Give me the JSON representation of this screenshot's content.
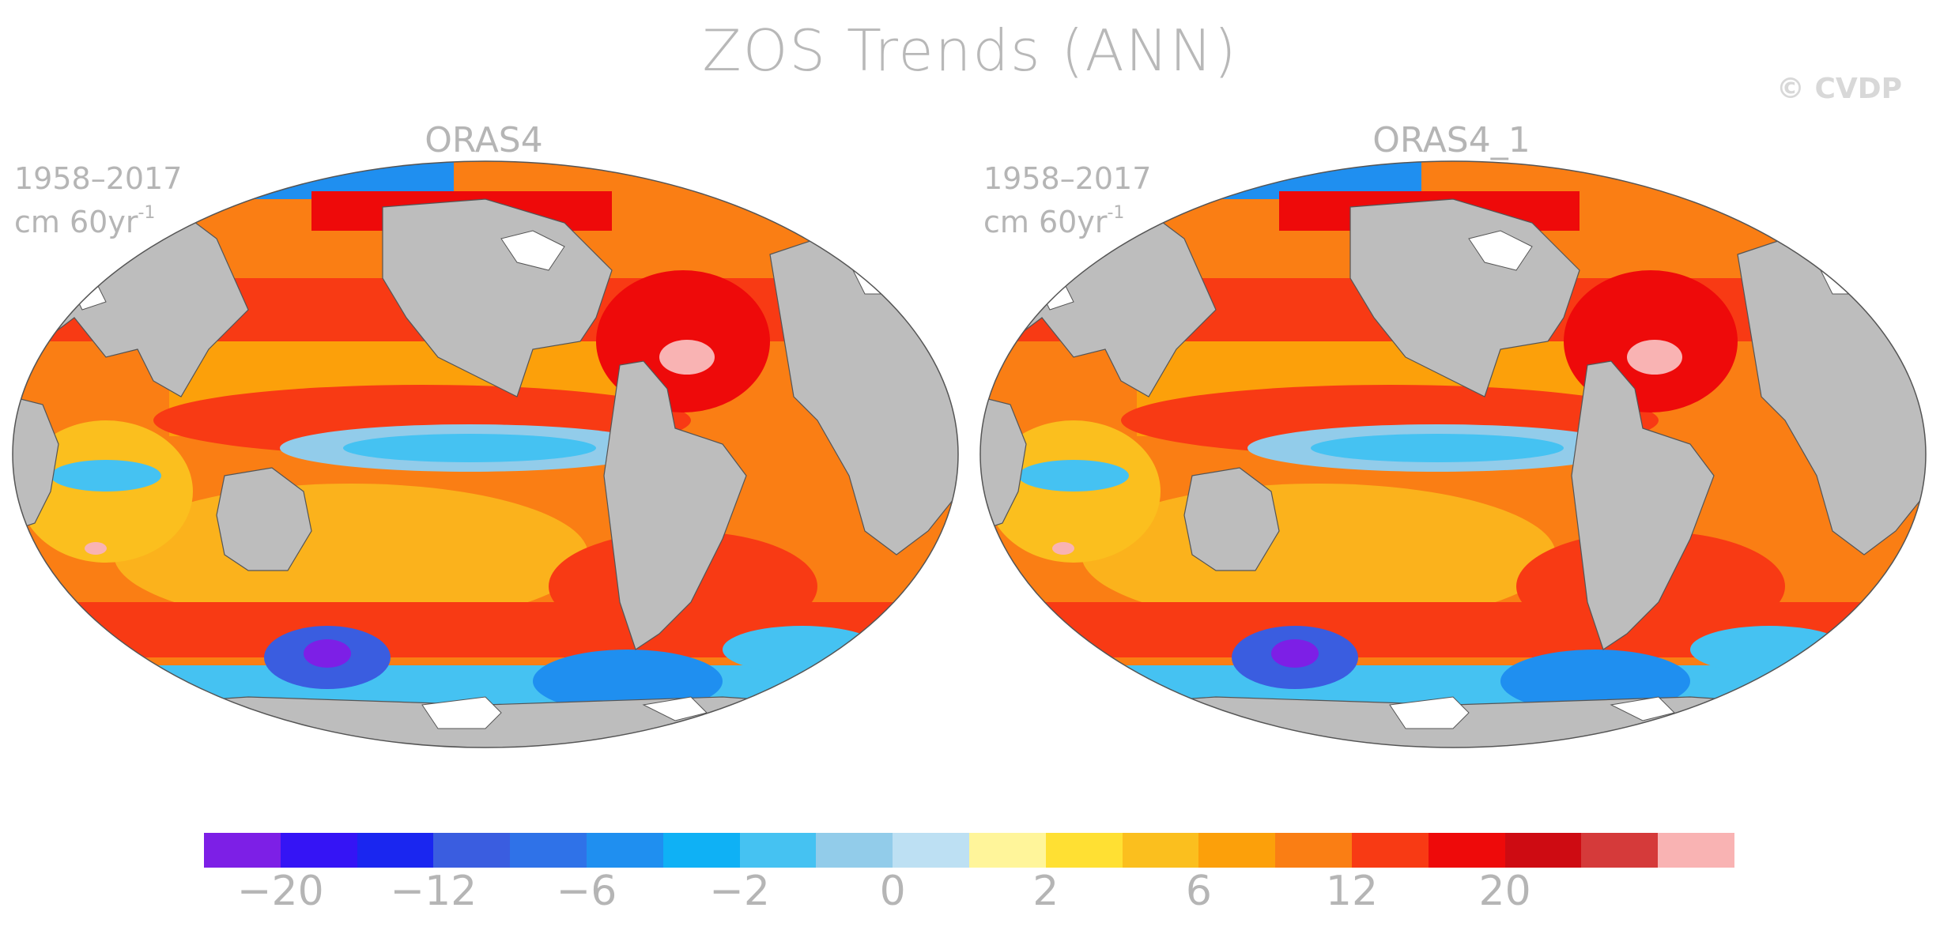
{
  "title": "ZOS Trends (ANN)",
  "watermark": "© CVDP",
  "panels": [
    {
      "name": "ORAS4",
      "period": "1958–2017",
      "units": "cm 60yr",
      "units_sup": "-1"
    },
    {
      "name": "ORAS4_1",
      "period": "1958–2017",
      "units": "cm 60yr",
      "units_sup": "-1"
    }
  ],
  "colorbar": {
    "colors": [
      "#7d1fe6",
      "#3514f5",
      "#1a26f0",
      "#3a5de0",
      "#2f72e8",
      "#1f8ff0",
      "#0fb1f5",
      "#45c2f2",
      "#92ccea",
      "#bde0f3",
      "#fff59a",
      "#ffe033",
      "#fbbf1e",
      "#fca00a",
      "#fa7e14",
      "#f83a14",
      "#ee0a0a",
      "#ce0b12",
      "#d53a3a",
      "#f9b3b3"
    ],
    "tick_labels": [
      "−20",
      "−12",
      "−6",
      "−2",
      "0",
      "2",
      "6",
      "12",
      "20"
    ]
  },
  "map_colors": {
    "land": "#bdbdbd",
    "ice": "#ffffff",
    "outline": "#555555"
  }
}
